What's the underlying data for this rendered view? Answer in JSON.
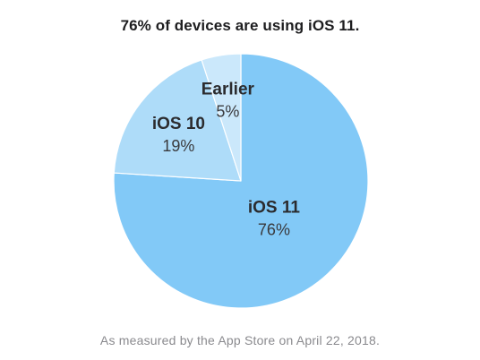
{
  "chart_data": {
    "type": "pie",
    "title": "76% of devices are using iOS 11.",
    "footnote": "As measured by the App Store on April 22, 2018.",
    "slices": [
      {
        "name": "iOS 11",
        "label": "76%",
        "value": 76,
        "color": "#82c9f7"
      },
      {
        "name": "iOS 10",
        "label": "19%",
        "value": 19,
        "color": "#aedcf9"
      },
      {
        "name": "Earlier",
        "label": "5%",
        "value": 5,
        "color": "#cbe8fb"
      }
    ]
  }
}
